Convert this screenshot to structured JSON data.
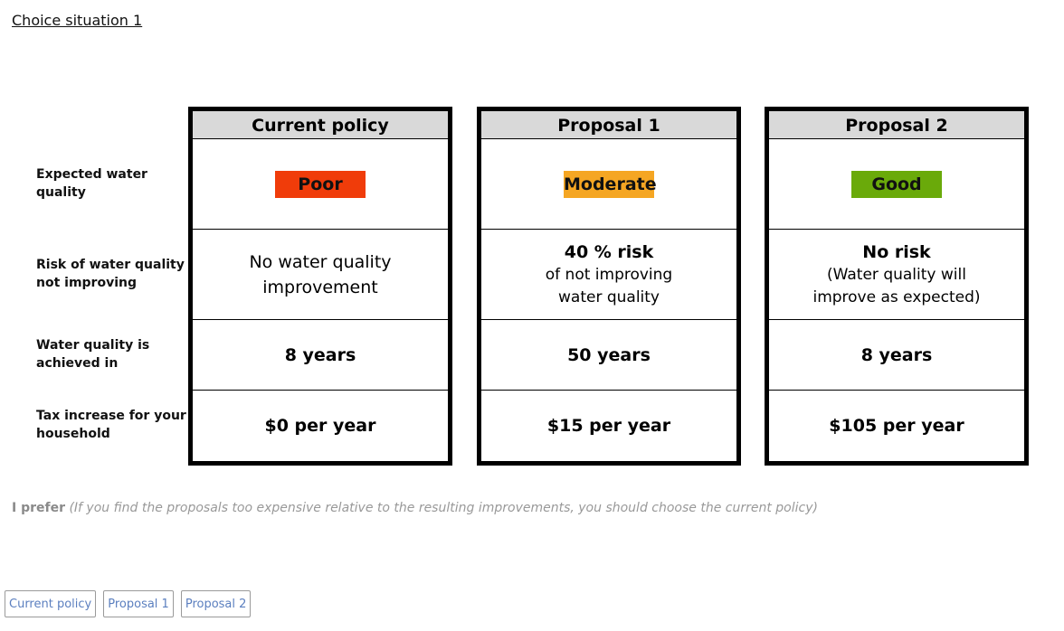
{
  "title": "Choice situation 1",
  "row_labels": [
    "Expected water quality",
    "Risk of water quality not improving",
    "Water quality is achieved in",
    "Tax increase for your household"
  ],
  "columns": [
    {
      "header": "Current policy",
      "quality": {
        "label": "Poor",
        "color": "#f03c0a"
      },
      "risk": {
        "main": "",
        "sub": "No water quality improvement"
      },
      "years": "8 years",
      "tax": "$0 per year"
    },
    {
      "header": "Proposal 1",
      "quality": {
        "label": "Moderate",
        "color": "#f5a623"
      },
      "risk": {
        "main": "40 % risk",
        "sub": "of not improving water quality"
      },
      "years": "50 years",
      "tax": "$15 per year"
    },
    {
      "header": "Proposal 2",
      "quality": {
        "label": "Good",
        "color": "#6aaa0a"
      },
      "risk": {
        "main": "No risk",
        "sub": "(Water quality will improve as expected)"
      },
      "years": "8 years",
      "tax": "$105 per year"
    }
  ],
  "prefer": {
    "label": "I prefer",
    "note": "(If you find the proposals too expensive relative to the resulting improvements, you should choose the current policy)"
  },
  "buttons": [
    "Current policy",
    "Proposal 1",
    "Proposal 2"
  ]
}
